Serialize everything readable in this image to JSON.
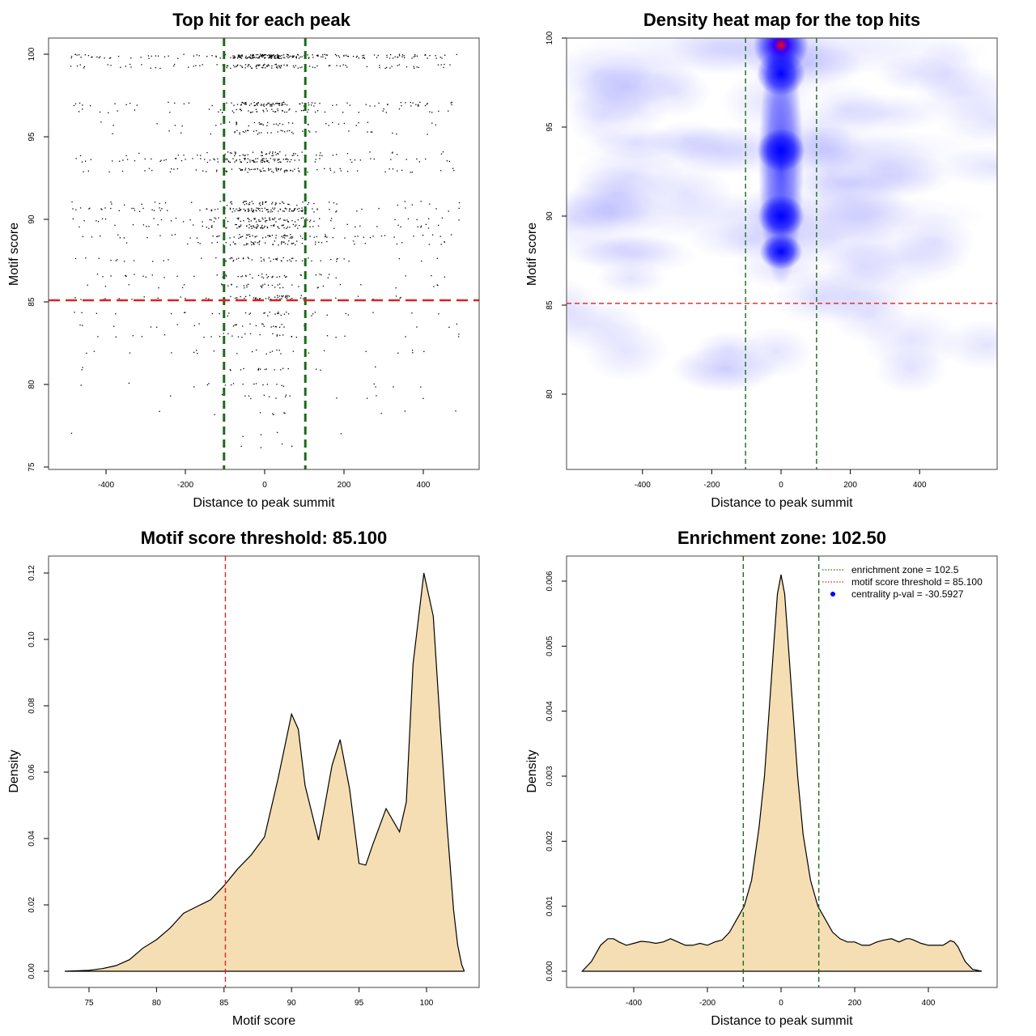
{
  "colors": {
    "enrichment_line": "#1a6b1a",
    "threshold_line": "#dd2222",
    "fill": "#f5deb3",
    "heat_low": "#ffffff",
    "heat_mid": "#0000ff",
    "heat_high": "#ff0000",
    "centrality_marker": "#0000ff"
  },
  "chart_data": [
    {
      "type": "scatter",
      "title": "Top hit for each peak",
      "xlabel": "Distance to peak summit",
      "ylabel": "Motif score",
      "xlim": [
        -500,
        500
      ],
      "ylim": [
        75,
        100
      ],
      "x_ticks": [
        "-400",
        "-200",
        "0",
        "200",
        "400"
      ],
      "y_ticks": [
        "75",
        "80",
        "85",
        "90",
        "95",
        "100"
      ],
      "enrichment_zone": [
        -102.5,
        102.5
      ],
      "threshold": 85.1,
      "score_bands": [
        {
          "score": 99.9,
          "n": 250,
          "spread": 175
        },
        {
          "score": 99.3,
          "n": 120,
          "spread": 180
        },
        {
          "score": 97.0,
          "n": 110,
          "spread": 200
        },
        {
          "score": 96.6,
          "n": 60,
          "spread": 200
        },
        {
          "score": 95.8,
          "n": 40,
          "spread": 220
        },
        {
          "score": 95.3,
          "n": 40,
          "spread": 220
        },
        {
          "score": 94.0,
          "n": 60,
          "spread": 230
        },
        {
          "score": 93.6,
          "n": 110,
          "spread": 230
        },
        {
          "score": 93.0,
          "n": 90,
          "spread": 230
        },
        {
          "score": 91.0,
          "n": 60,
          "spread": 220
        },
        {
          "score": 90.6,
          "n": 120,
          "spread": 230
        },
        {
          "score": 90.0,
          "n": 80,
          "spread": 230
        },
        {
          "score": 89.6,
          "n": 90,
          "spread": 230
        },
        {
          "score": 89.0,
          "n": 80,
          "spread": 230
        },
        {
          "score": 88.6,
          "n": 60,
          "spread": 230
        },
        {
          "score": 87.6,
          "n": 60,
          "spread": 230
        },
        {
          "score": 86.6,
          "n": 50,
          "spread": 240
        },
        {
          "score": 86.0,
          "n": 40,
          "spread": 240
        },
        {
          "score": 85.3,
          "n": 60,
          "spread": 240
        },
        {
          "score": 84.3,
          "n": 35,
          "spread": 250
        },
        {
          "score": 83.6,
          "n": 30,
          "spread": 250
        },
        {
          "score": 83.0,
          "n": 30,
          "spread": 250
        },
        {
          "score": 82.0,
          "n": 25,
          "spread": 260
        },
        {
          "score": 81.0,
          "n": 20,
          "spread": 260
        },
        {
          "score": 80.0,
          "n": 20,
          "spread": 260
        },
        {
          "score": 79.3,
          "n": 15,
          "spread": 260
        },
        {
          "score": 78.3,
          "n": 10,
          "spread": 260
        },
        {
          "score": 77.0,
          "n": 5,
          "spread": 260
        },
        {
          "score": 76.3,
          "n": 4,
          "spread": 260
        }
      ]
    },
    {
      "type": "heatmap",
      "title": "Density heat map for the top hits",
      "xlabel": "Distance to peak summit",
      "ylabel": "Motif score",
      "xlim": [
        -500,
        500
      ],
      "ylim": [
        76,
        100
      ],
      "x_ticks": [
        "-400",
        "-200",
        "0",
        "200",
        "400"
      ],
      "y_ticks": [
        "80",
        "85",
        "90",
        "95",
        "100"
      ],
      "enrichment_zone": [
        -102.5,
        102.5
      ],
      "threshold": 85.1,
      "hotspots": [
        {
          "x": 0,
          "y": 99.6,
          "level": 1.0
        },
        {
          "x": 0,
          "y": 98.0,
          "level": 0.6
        },
        {
          "x": 0,
          "y": 93.7,
          "level": 0.55
        },
        {
          "x": 0,
          "y": 90.0,
          "level": 0.5
        },
        {
          "x": 0,
          "y": 88.0,
          "level": 0.25
        }
      ]
    },
    {
      "type": "area",
      "title": "Motif score threshold: 85.100",
      "xlabel": "Motif score",
      "ylabel": "Density",
      "xlim": [
        73.2,
        102.8
      ],
      "ylim": [
        0,
        0.12
      ],
      "x_ticks": [
        "75",
        "80",
        "85",
        "90",
        "95",
        "100"
      ],
      "y_ticks": [
        "0.00",
        "0.02",
        "0.04",
        "0.06",
        "0.08",
        "0.10",
        "0.12"
      ],
      "threshold": 85.1,
      "x": [
        73.2,
        75,
        76,
        77,
        78,
        79,
        80,
        81,
        82,
        83,
        84,
        85,
        86,
        87,
        88,
        89,
        90,
        90.5,
        91,
        92,
        93,
        93.6,
        94.3,
        95,
        95.5,
        96,
        97,
        98,
        98.5,
        99,
        99.8,
        100.5,
        101,
        101.5,
        102,
        102.3,
        102.6,
        102.8
      ],
      "y": [
        0.0,
        0.0003,
        0.0008,
        0.0017,
        0.0035,
        0.007,
        0.0095,
        0.013,
        0.0175,
        0.0195,
        0.0215,
        0.0258,
        0.0308,
        0.035,
        0.0405,
        0.058,
        0.0775,
        0.073,
        0.056,
        0.0395,
        0.062,
        0.0698,
        0.055,
        0.0325,
        0.032,
        0.038,
        0.049,
        0.042,
        0.051,
        0.0925,
        0.12,
        0.107,
        0.075,
        0.045,
        0.0185,
        0.008,
        0.002,
        0.0
      ]
    },
    {
      "type": "area",
      "title": "Enrichment zone: 102.50",
      "xlabel": "Distance to peak summit",
      "ylabel": "Density",
      "xlim": [
        -545,
        545
      ],
      "ylim": [
        0,
        0.0062
      ],
      "x_ticks": [
        "-400",
        "-200",
        "0",
        "200",
        "400"
      ],
      "y_ticks": [
        "0.000",
        "0.001",
        "0.002",
        "0.003",
        "0.004",
        "0.005",
        "0.006"
      ],
      "enrichment_zone": [
        -102.5,
        102.5
      ],
      "x": [
        -540,
        -515,
        -490,
        -470,
        -455,
        -440,
        -420,
        -400,
        -380,
        -360,
        -340,
        -320,
        -300,
        -280,
        -260,
        -240,
        -220,
        -200,
        -180,
        -160,
        -140,
        -120,
        -100,
        -80,
        -60,
        -45,
        -30,
        -20,
        -10,
        0,
        10,
        20,
        30,
        45,
        60,
        80,
        100,
        120,
        140,
        160,
        180,
        200,
        220,
        240,
        260,
        280,
        300,
        320,
        340,
        350,
        360,
        380,
        400,
        420,
        440,
        460,
        470,
        480,
        500,
        520,
        545
      ],
      "y": [
        0.0,
        0.00015,
        0.0004,
        0.0005,
        0.0005,
        0.00045,
        0.0004,
        0.00043,
        0.00046,
        0.00045,
        0.00043,
        0.00045,
        0.0005,
        0.00045,
        0.0004,
        0.0004,
        0.00043,
        0.0004,
        0.00045,
        0.00048,
        0.0006,
        0.0008,
        0.001,
        0.0014,
        0.0022,
        0.003,
        0.0042,
        0.005,
        0.0058,
        0.0061,
        0.0058,
        0.005,
        0.0042,
        0.003,
        0.0021,
        0.0014,
        0.001,
        0.0008,
        0.0006,
        0.0005,
        0.00045,
        0.00045,
        0.0004,
        0.0004,
        0.00045,
        0.00048,
        0.0005,
        0.00045,
        0.0005,
        0.0005,
        0.00048,
        0.00043,
        0.0004,
        0.0004,
        0.0004,
        0.00047,
        0.00045,
        0.00038,
        0.00015,
        3e-05,
        0.0
      ]
    }
  ],
  "legend": [
    {
      "label": "enrichment zone = 102.5",
      "style": "dotted",
      "color": "#1a6b1a"
    },
    {
      "label": "motif score threshold = 85.100",
      "style": "dotted",
      "color": "#dd2222"
    },
    {
      "label": "centrality p-val = -30.5927",
      "style": "dot",
      "color": "#0000ff"
    }
  ]
}
